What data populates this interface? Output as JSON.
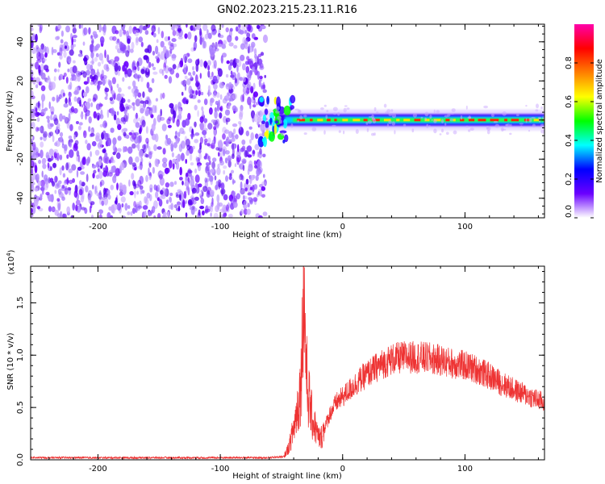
{
  "title": "GN02.2023.215.23.11.R16",
  "chart_data": [
    {
      "type": "heatmap",
      "title": "",
      "xlabel": "Height of straight line (km)",
      "ylabel": "Frequency (Hz)",
      "xlim": [
        -255,
        165
      ],
      "ylim": [
        -50,
        49
      ],
      "xticks": [
        -200,
        -100,
        0,
        100
      ],
      "xtick_labels": [
        "-200",
        "-100",
        "0",
        "100"
      ],
      "yticks": [
        -40,
        -20,
        0,
        20,
        40
      ],
      "ytick_labels": [
        "-40",
        "-20",
        "0",
        "20",
        "40"
      ],
      "noise_region_x": [
        -255,
        -67
      ],
      "signal_start_x": -67,
      "signal_band_halfwidth_hz": 3,
      "grid": false,
      "colorbar": {
        "label": "Normalized spectral amplitude",
        "range": [
          0.0,
          1.0
        ],
        "ticks": [
          0.0,
          0.2,
          0.4,
          0.6,
          0.8
        ],
        "tick_labels": [
          "0.0",
          "0.2",
          "0.4",
          "0.6",
          "0.8"
        ],
        "colormap": [
          "#ffffff",
          "#6a00ff",
          "#0000ff",
          "#00ffff",
          "#00ff00",
          "#ffff00",
          "#ff7f00",
          "#ff0000",
          "#ff00aa"
        ]
      }
    },
    {
      "type": "line",
      "title": "",
      "xlabel": "Height of straight line (km)",
      "ylabel": "SNR (10 * v/v)",
      "y_multiplier_label": "(x10",
      "y_multiplier_exp": "4",
      "y_multiplier_close": ")",
      "xlim": [
        -255,
        165
      ],
      "ylim": [
        0.0,
        1.85
      ],
      "xticks": [
        -200,
        -100,
        0,
        100
      ],
      "xtick_labels": [
        "-200",
        "-100",
        "0",
        "100"
      ],
      "yticks": [
        0.0,
        0.5,
        1.0,
        1.5
      ],
      "ytick_labels": [
        "0.0",
        "0.5",
        "1.0",
        "1.5"
      ],
      "line_color": "#ee3333",
      "grid": false,
      "series": [
        {
          "x": [
            -255,
            -200,
            -150,
            -100,
            -60,
            -48,
            -44,
            -40,
            -36,
            -34,
            -33,
            -32,
            -31,
            -30,
            -29,
            -27,
            -25,
            -22,
            -20,
            -18,
            -15,
            -10,
            -5,
            0,
            10,
            20,
            30,
            40,
            50,
            60,
            70,
            80,
            90,
            100,
            110,
            120,
            130,
            140,
            150,
            160,
            165
          ],
          "y": [
            0.02,
            0.02,
            0.02,
            0.02,
            0.02,
            0.03,
            0.12,
            0.3,
            0.55,
            0.75,
            1.2,
            1.85,
            1.35,
            1.0,
            0.7,
            0.55,
            0.4,
            0.3,
            0.22,
            0.2,
            0.3,
            0.45,
            0.55,
            0.6,
            0.72,
            0.82,
            0.9,
            0.96,
            0.98,
            0.98,
            0.97,
            0.95,
            0.92,
            0.9,
            0.86,
            0.8,
            0.73,
            0.67,
            0.62,
            0.57,
            0.55
          ]
        }
      ]
    }
  ]
}
